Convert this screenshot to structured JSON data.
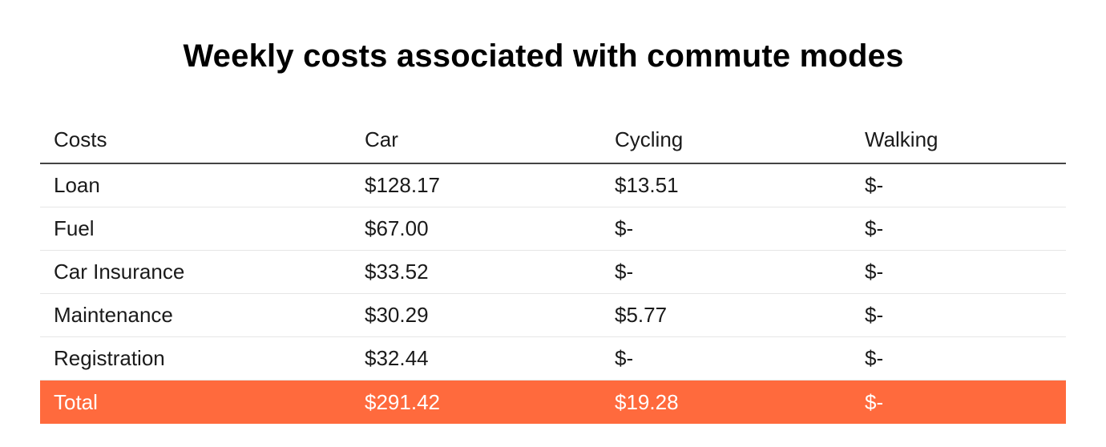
{
  "chart_data": {
    "type": "table",
    "title": "Weekly costs associated with commute modes",
    "columns": [
      "Costs",
      "Car",
      "Cycling",
      "Walking"
    ],
    "rows": [
      [
        "Loan",
        "$128.17",
        "$13.51",
        "$-"
      ],
      [
        "Fuel",
        "$67.00",
        "$-",
        "$-"
      ],
      [
        "Car Insurance",
        "$33.52",
        "$-",
        "$-"
      ],
      [
        "Maintenance",
        "$30.29",
        "$5.77",
        "$-"
      ],
      [
        "Registration",
        "$32.44",
        "$-",
        "$-"
      ],
      [
        "Total",
        "$291.42",
        "$19.28",
        "$-"
      ]
    ],
    "total_row_color": "#ff6a3d"
  }
}
